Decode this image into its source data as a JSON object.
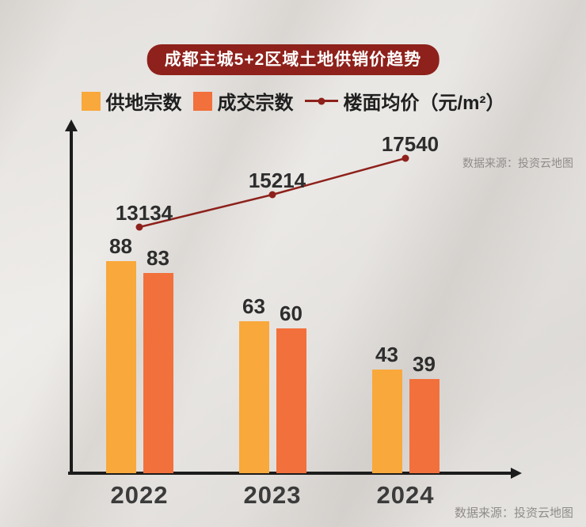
{
  "title": "成都主城5+2区域土地供销价趋势",
  "source_note": "数据来源：投资云地图",
  "legend": [
    {
      "label": "供地宗数",
      "color": "#F9A83C",
      "type": "square"
    },
    {
      "label": "成交宗数",
      "color": "#F2703B",
      "type": "square"
    },
    {
      "label": "楼面均价（元/m²）",
      "color": "#8E211B",
      "type": "line"
    }
  ],
  "chart_data": {
    "type": "bar+line",
    "title": "成都主城5+2区域土地供销价趋势",
    "categories": [
      "2022",
      "2023",
      "2024"
    ],
    "series": [
      {
        "name": "供地宗数",
        "type": "bar",
        "color": "#F9A83C",
        "values": [
          88,
          63,
          43
        ]
      },
      {
        "name": "成交宗数",
        "type": "bar",
        "color": "#F2703B",
        "values": [
          83,
          60,
          39
        ]
      },
      {
        "name": "楼面均价（元/m²）",
        "type": "line",
        "color": "#8E211B",
        "values": [
          13134,
          15214,
          17540
        ]
      }
    ],
    "bar_ylim": [
      0,
      95
    ],
    "line_ylim": [
      13000,
      18000
    ],
    "grid": false,
    "legend_position": "top",
    "xlabel": "",
    "ylabel": ""
  }
}
